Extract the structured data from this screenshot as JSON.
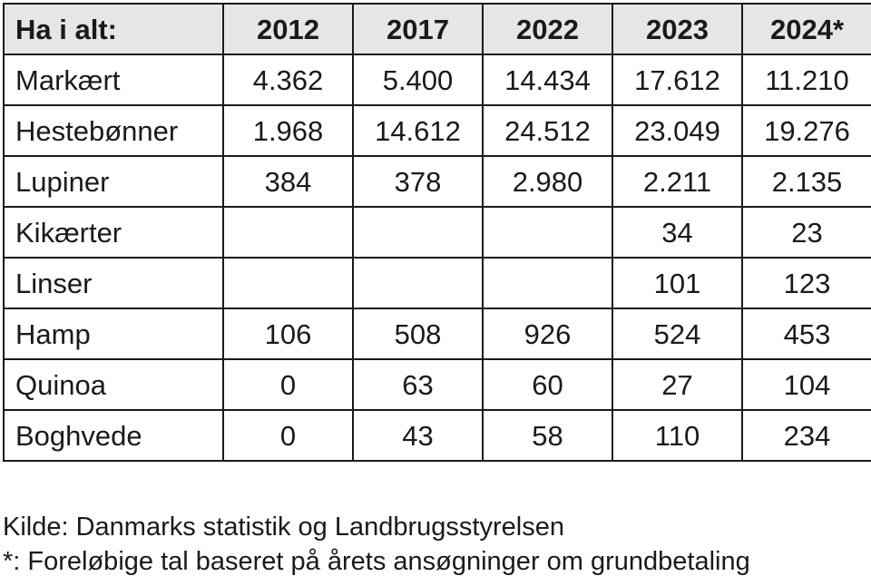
{
  "table": {
    "corner_label": "Ha i alt:",
    "years": [
      "2012",
      "2017",
      "2022",
      "2023",
      "2024*"
    ],
    "rows": [
      {
        "label": "Markært",
        "values": [
          "4.362",
          "5.400",
          "14.434",
          "17.612",
          "11.210"
        ]
      },
      {
        "label": "Hestebønner",
        "values": [
          "1.968",
          "14.612",
          "24.512",
          "23.049",
          "19.276"
        ]
      },
      {
        "label": "Lupiner",
        "values": [
          "384",
          "378",
          "2.980",
          "2.211",
          "2.135"
        ]
      },
      {
        "label": "Kikærter",
        "values": [
          "",
          "",
          "",
          "34",
          "23"
        ]
      },
      {
        "label": "Linser",
        "values": [
          "",
          "",
          "",
          "101",
          "123"
        ]
      },
      {
        "label": "Hamp",
        "values": [
          "106",
          "508",
          "926",
          "524",
          "453"
        ]
      },
      {
        "label": "Quinoa",
        "values": [
          "0",
          "63",
          "60",
          "27",
          "104"
        ]
      },
      {
        "label": "Boghvede",
        "values": [
          "0",
          "43",
          "58",
          "110",
          "234"
        ]
      }
    ]
  },
  "notes": {
    "source": "Kilde: Danmarks statistik og Landbrugsstyrelsen",
    "footnote": "*: Foreløbige tal baseret på årets ansøgninger om grundbetaling"
  }
}
